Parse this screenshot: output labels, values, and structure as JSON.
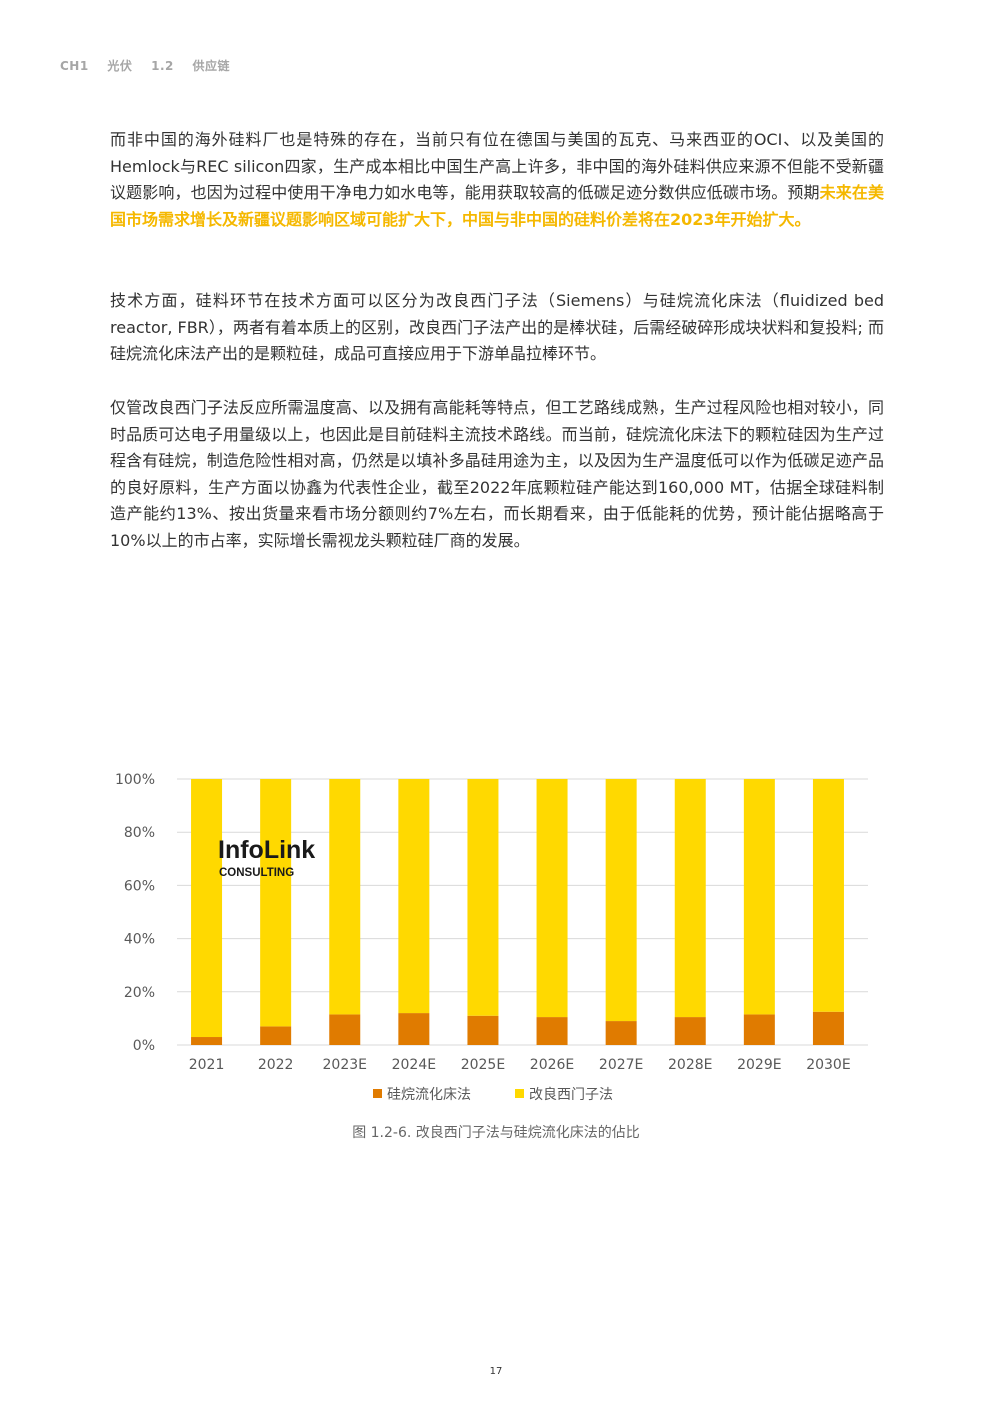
{
  "header": {
    "chapter": "CH1",
    "chapter_title": "光伏",
    "section": "1.2",
    "section_title": "供应链"
  },
  "paragraphs": {
    "p1_text": "而非中国的海外硅料厂也是特殊的存在，当前只有位在德国与美国的瓦克、马来西亚的OCI、以及美国的Hemlock与REC silicon四家，生产成本相比中国生产高上许多，非中国的海外硅料供应来源不但能不受新疆议题影响，也因为过程中使用干净电力如水电等，能用获取较高的低碳足迹分数供应低碳市场。预期",
    "p1_highlight": "未来在美国市场需求增长及新疆议题影响区域可能扩大下，中国与非中国的硅料价差将在2023年开始扩大。",
    "p2": "技术方面，硅料环节在技术方面可以区分为改良西门子法（Siemens）与硅烷流化床法（fluidized bed reactor, FBR），两者有着本质上的区别，改良西门子法产出的是棒状硅，后需经破碎形成块状料和复投料; 而硅烷流化床法产出的是颗粒硅，成品可直接应用于下游单晶拉棒环节。",
    "p3": "仅管改良西门子法反应所需温度高、以及拥有高能耗等特点，但工艺路线成熟，生产过程风险也相对较小，同时品质可达电子用量级以上，也因此是目前硅料主流技术路线。而当前，硅烷流化床法下的颗粒硅因为生产过程含有硅烷，制造危险性相对高，仍然是以填补多晶硅用途为主，以及因为生产温度低可以作为低碳足迹产品的良好原料，生产方面以协鑫为代表性企业，截至2022年底颗粒硅产能达到160,000 MT，估据全球硅料制造产能约13%、按出货量来看市场分额则约7%左右，而长期看来，由于低能耗的优势，预计能佔据略高于10%以上的市占率，实际增长需视龙头颗粒硅厂商的发展。"
  },
  "logo": {
    "name": "InfoLink",
    "sub": "CONSULTING"
  },
  "chart_data": {
    "type": "bar",
    "stacked": true,
    "categories": [
      "2021",
      "2022",
      "2023E",
      "2024E",
      "2025E",
      "2026E",
      "2027E",
      "2028E",
      "2029E",
      "2030E"
    ],
    "series": [
      {
        "name": "硅烷流化床法",
        "color": "#e07b00",
        "values": [
          3,
          7,
          11.5,
          12,
          11,
          10.5,
          9,
          10.5,
          11.5,
          12.5
        ]
      },
      {
        "name": "改良西门子法",
        "color": "#ffd900",
        "values": [
          97,
          93,
          88.5,
          88,
          89,
          89.5,
          91,
          89.5,
          88.5,
          87.5
        ]
      }
    ],
    "yticks": [
      "0%",
      "20%",
      "40%",
      "60%",
      "80%",
      "100%"
    ],
    "ylim": [
      0,
      100
    ],
    "grid": true,
    "legend": "bottom"
  },
  "caption": "图 1.2-6. 改良西门子法与硅烷流化床法的佔比",
  "page_number": "17"
}
